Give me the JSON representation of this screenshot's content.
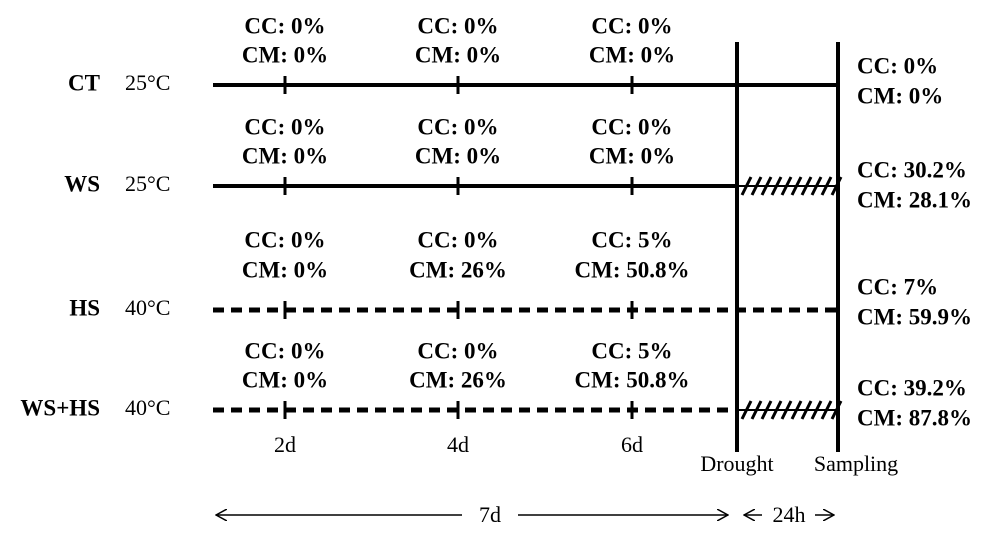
{
  "rows": [
    {
      "label": "CT",
      "temp": "25°C",
      "line": "solid",
      "hatched": false,
      "timepoints": [
        {
          "cc": "CC: 0%",
          "cm": "CM: 0%"
        },
        {
          "cc": "CC: 0%",
          "cm": "CM: 0%"
        },
        {
          "cc": "CC: 0%",
          "cm": "CM: 0%"
        }
      ],
      "final": {
        "cc": "CC: 0%",
        "cm": "CM: 0%"
      }
    },
    {
      "label": "WS",
      "temp": "25°C",
      "line": "solid",
      "hatched": true,
      "timepoints": [
        {
          "cc": "CC: 0%",
          "cm": "CM: 0%"
        },
        {
          "cc": "CC: 0%",
          "cm": "CM: 0%"
        },
        {
          "cc": "CC: 0%",
          "cm": "CM: 0%"
        }
      ],
      "final": {
        "cc": "CC: 30.2%",
        "cm": "CM: 28.1%"
      }
    },
    {
      "label": "HS",
      "temp": "40°C",
      "line": "dashed",
      "hatched": false,
      "timepoints": [
        {
          "cc": "CC: 0%",
          "cm": "CM: 0%"
        },
        {
          "cc": "CC: 0%",
          "cm": "CM: 26%"
        },
        {
          "cc": "CC: 5%",
          "cm": "CM: 50.8%"
        }
      ],
      "final": {
        "cc": "CC: 7%",
        "cm": "CM: 59.9%"
      }
    },
    {
      "label": "WS+HS",
      "temp": "40°C",
      "line": "dashed",
      "hatched": true,
      "timepoints": [
        {
          "cc": "CC: 0%",
          "cm": "CM: 0%"
        },
        {
          "cc": "CC: 0%",
          "cm": "CM: 26%"
        },
        {
          "cc": "CC: 5%",
          "cm": "CM: 50.8%"
        }
      ],
      "final": {
        "cc": "CC: 39.2%",
        "cm": "CM: 87.8%"
      }
    }
  ],
  "timepoints": [
    "2d",
    "4d",
    "6d"
  ],
  "events": [
    "Drought",
    "Sampling"
  ],
  "durations": [
    "7d",
    "24h"
  ]
}
